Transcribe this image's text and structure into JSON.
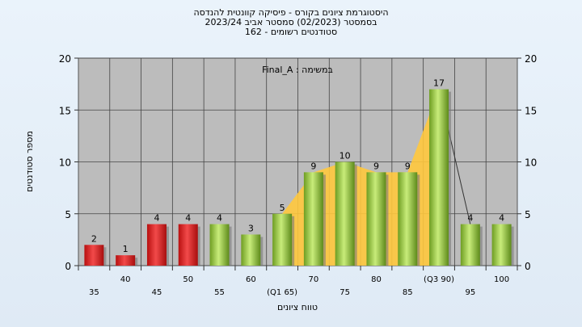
{
  "title": {
    "line1": "היסטוגרמת ציונים בקורס - פיסיקה קוונטית להנדסה",
    "line2": "בסמסטר  (02/2023)  סמסטר אביב 2023/24",
    "line3": "סטודנטים רשומים - 162"
  },
  "chart_data": {
    "type": "bar",
    "annotation": "במשימה : Final_A",
    "xlabel": "טווח ציונים",
    "ylabel": "מספר סטודנטים",
    "ylim": [
      0,
      20
    ],
    "yticks": [
      0,
      5,
      10,
      15,
      20
    ],
    "grid": true,
    "categories": [
      "35",
      "40",
      "45",
      "50",
      "55",
      "60",
      "(Q1 65)",
      "70",
      "75",
      "80",
      "85",
      "(Q3 90)",
      "95",
      "100"
    ],
    "values": [
      2,
      1,
      4,
      4,
      4,
      3,
      5,
      9,
      10,
      9,
      9,
      17,
      4,
      4
    ],
    "bar_colors": [
      "red",
      "red",
      "red",
      "red",
      "green",
      "green",
      "green",
      "green",
      "green",
      "green",
      "green",
      "green",
      "green",
      "green"
    ],
    "interquartile_area": {
      "from": "(Q1 65)",
      "to": "(Q3 90)",
      "color": "#ffc83d"
    },
    "colors": {
      "red": "#e02020",
      "green": "#8dc43a",
      "plot_bg": "#bcbcbc",
      "area": "#ffc83d"
    }
  }
}
